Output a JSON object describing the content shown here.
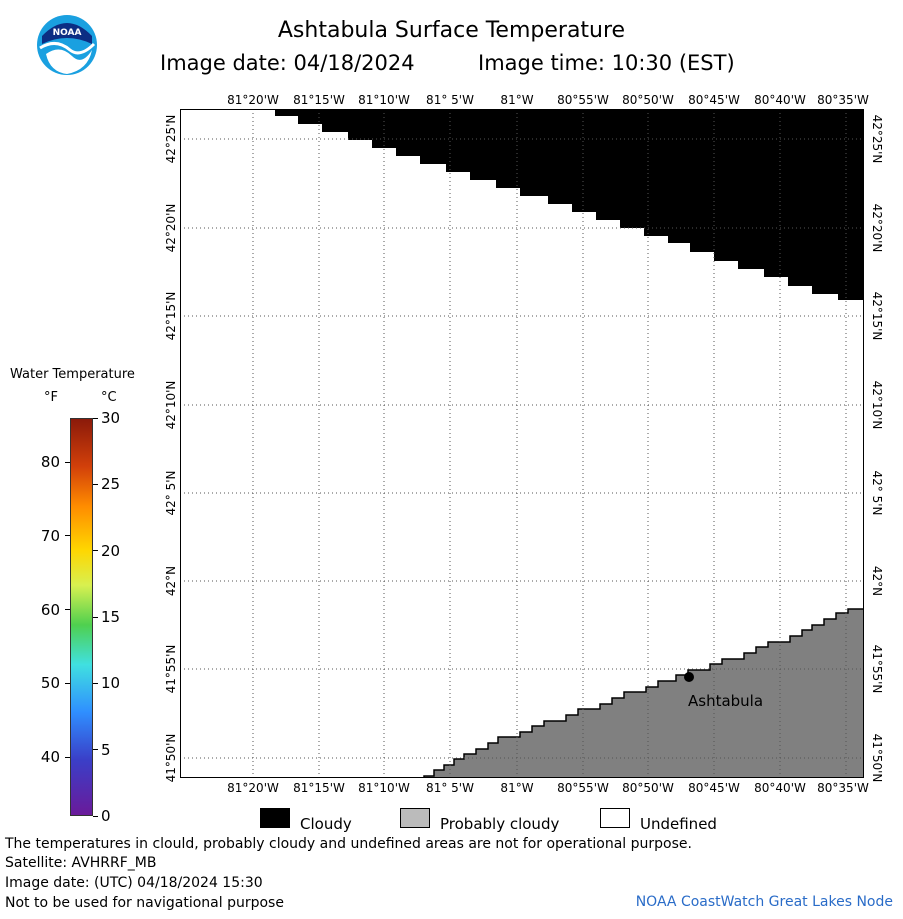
{
  "title": "Ashtabula Surface Temperature",
  "image_date_label": "Image date: 04/18/2024",
  "image_time_label": "Image time: 10:30 (EST)",
  "logo_text": "NOAA",
  "map": {
    "lon_ticks": [
      "81°20'W",
      "81°15'W",
      "81°10'W",
      "81° 5'W",
      "81°W",
      "80°55'W",
      "80°50'W",
      "80°45'W",
      "80°40'W",
      "80°35'W"
    ],
    "lat_ticks": [
      "42°25'N",
      "42°20'N",
      "42°15'N",
      "42°10'N",
      "42° 5'N",
      "42°N",
      "41°55'N",
      "41°50'N"
    ],
    "city": "Ashtabula",
    "colors": {
      "cloud": "#000000",
      "land": "#808080",
      "undefined": "#ffffff"
    }
  },
  "legend": {
    "title": "Water Temperature",
    "unit_f": "°F",
    "unit_c": "°C",
    "fahrenheit": [
      {
        "label": "80",
        "c": 26.67
      },
      {
        "label": "70",
        "c": 21.11
      },
      {
        "label": "60",
        "c": 15.56
      },
      {
        "label": "50",
        "c": 10.0
      },
      {
        "label": "40",
        "c": 4.44
      }
    ],
    "celsius": [
      {
        "label": "30",
        "c": 30
      },
      {
        "label": "25",
        "c": 25
      },
      {
        "label": "20",
        "c": 20
      },
      {
        "label": "15",
        "c": 15
      },
      {
        "label": "10",
        "c": 10
      },
      {
        "label": "5",
        "c": 5
      },
      {
        "label": "0",
        "c": 0
      }
    ]
  },
  "key": [
    {
      "label": "Cloudy",
      "color": "#000000"
    },
    {
      "label": "Probably cloudy",
      "color": "#bbbbbb"
    },
    {
      "label": "Undefined",
      "color": "#ffffff"
    }
  ],
  "footer": {
    "disclaimer": "The temperatures in clould, probably cloudy and undefined areas are not for operational purpose.",
    "satellite": "Satellite: AVHRRF_MB",
    "utc_date": "Image date: (UTC) 04/18/2024  15:30",
    "nav_warning": "Not to be used for navigational purpose",
    "node": "NOAA CoastWatch Great Lakes Node"
  }
}
